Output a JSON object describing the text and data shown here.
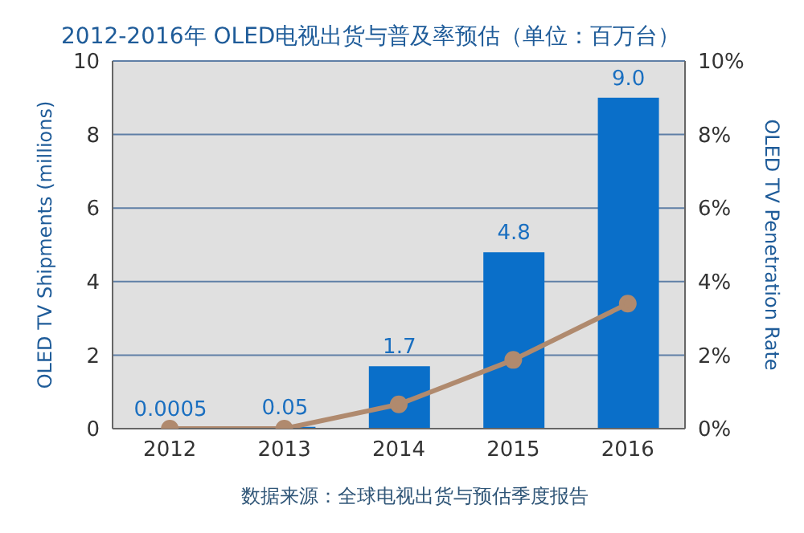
{
  "chart_data": {
    "type": "bar",
    "title": "2012-2016年  OLED电视出货与普及率预估（单位：百万台）",
    "ylabel": "OLED TV Shipments (millions)",
    "y2label": "OLED TV Penetration Rate",
    "annotations": [
      "数据来源：全球电视出货与预估季度报告"
    ],
    "categories": [
      "2012",
      "2013",
      "2014",
      "2015",
      "2016"
    ],
    "series": [
      {
        "color": "#0a6fc9",
        "values": [
          0.0005,
          0.05,
          1.7,
          4.8,
          9.0
        ],
        "value_labels": [
          "0.0005",
          "0.05",
          "1.7",
          "4.8",
          "9.0"
        ]
      },
      {
        "type": "line",
        "axis": "y2",
        "color": "#b08a6e",
        "values": [
          0,
          0,
          0.66,
          1.87,
          3.4
        ],
        "marker": "circle"
      }
    ],
    "ylim": [
      0,
      10
    ],
    "yticks": [
      0,
      2,
      4,
      6,
      8,
      10
    ],
    "y2lim": [
      0,
      10
    ],
    "y2ticks": [
      {
        "value": 0,
        "label": "0%"
      },
      {
        "value": 2,
        "label": "2%"
      },
      {
        "value": 4,
        "label": "4%"
      },
      {
        "value": 6,
        "label": "6%"
      },
      {
        "value": 8,
        "label": "8%"
      },
      {
        "value": 10,
        "label": "10%"
      }
    ],
    "grid": "y"
  }
}
